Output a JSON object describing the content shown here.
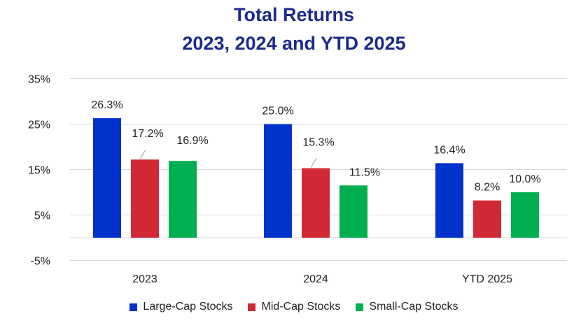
{
  "chart_data": {
    "type": "bar",
    "title": [
      "Total Returns",
      "2023, 2024 and YTD 2025"
    ],
    "categories": [
      "2023",
      "2024",
      "YTD 2025"
    ],
    "series": [
      {
        "name": "Large-Cap Stocks",
        "color": "#0033cc",
        "values": [
          26.3,
          25.0,
          16.4
        ],
        "labels": [
          "26.3%",
          "25.0%",
          "16.4%"
        ]
      },
      {
        "name": "Mid-Cap Stocks",
        "color": "#d12a36",
        "values": [
          17.2,
          15.3,
          8.2
        ],
        "labels": [
          "17.2%",
          "15.3%",
          "8.2%"
        ]
      },
      {
        "name": "Small-Cap Stocks",
        "color": "#00b050",
        "values": [
          16.9,
          11.5,
          10.0
        ],
        "labels": [
          "16.9%",
          "11.5%",
          "10.0%"
        ]
      }
    ],
    "ylim": [
      -5,
      35
    ],
    "yticks": [
      35,
      25,
      15,
      5,
      -5
    ],
    "ytick_labels": [
      "35%",
      "25%",
      "15%",
      "5%",
      "-5%"
    ],
    "grid": true,
    "legend": "bottom"
  }
}
